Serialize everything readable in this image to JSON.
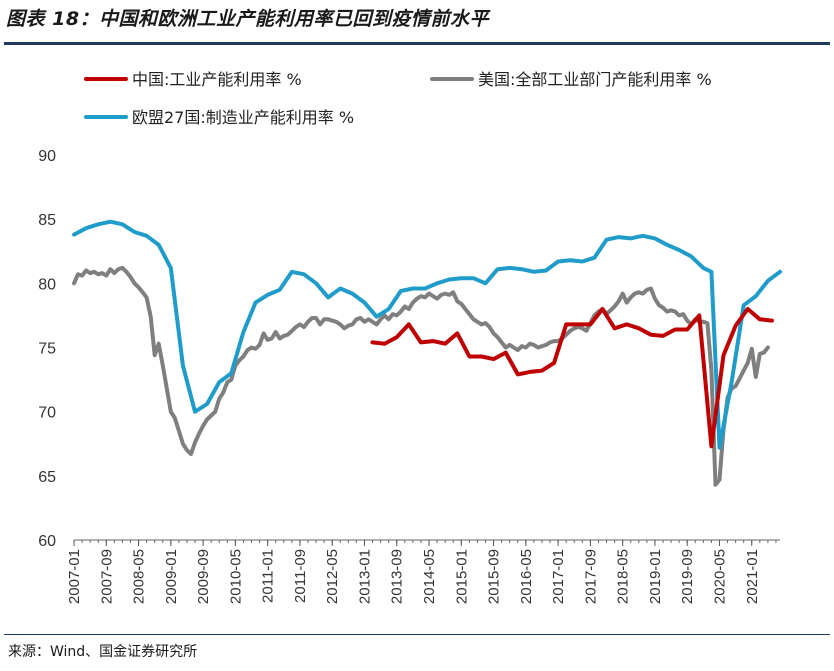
{
  "title": "图表 18：中国和欧洲工业产能利用率已回到疫情前水平",
  "source": "来源：Wind、国金证券研究所",
  "chart_data": {
    "type": "line",
    "ylim": [
      60,
      90
    ],
    "yticks": [
      60,
      65,
      70,
      75,
      80,
      85,
      90
    ],
    "x_start": "2007-01",
    "x_end": "2021-08",
    "xticks": [
      "2007-01",
      "2007-09",
      "2008-05",
      "2009-01",
      "2009-09",
      "2010-05",
      "2011-01",
      "2011-09",
      "2012-05",
      "2013-01",
      "2013-09",
      "2014-05",
      "2015-01",
      "2015-09",
      "2016-05",
      "2017-01",
      "2017-09",
      "2018-05",
      "2019-01",
      "2019-09",
      "2020-05",
      "2021-01"
    ],
    "grid": false,
    "legend_position": "top-left",
    "series": [
      {
        "name": "中国:工业产能利用率 %",
        "color": "#c00000",
        "points": [
          [
            "2013-03",
            75.4
          ],
          [
            "2013-06",
            75.3
          ],
          [
            "2013-09",
            75.8
          ],
          [
            "2013-12",
            76.8
          ],
          [
            "2014-03",
            75.4
          ],
          [
            "2014-06",
            75.5
          ],
          [
            "2014-09",
            75.3
          ],
          [
            "2014-12",
            76.1
          ],
          [
            "2015-03",
            74.3
          ],
          [
            "2015-06",
            74.3
          ],
          [
            "2015-09",
            74.1
          ],
          [
            "2015-12",
            74.6
          ],
          [
            "2016-03",
            72.9
          ],
          [
            "2016-06",
            73.1
          ],
          [
            "2016-09",
            73.2
          ],
          [
            "2016-12",
            73.8
          ],
          [
            "2017-03",
            76.8
          ],
          [
            "2017-06",
            76.8
          ],
          [
            "2017-09",
            76.8
          ],
          [
            "2017-12",
            78.0
          ],
          [
            "2018-03",
            76.5
          ],
          [
            "2018-06",
            76.8
          ],
          [
            "2018-09",
            76.5
          ],
          [
            "2018-12",
            76.0
          ],
          [
            "2019-03",
            75.9
          ],
          [
            "2019-06",
            76.4
          ],
          [
            "2019-09",
            76.4
          ],
          [
            "2019-12",
            77.5
          ],
          [
            "2020-03",
            67.3
          ],
          [
            "2020-06",
            74.4
          ],
          [
            "2020-09",
            76.7
          ],
          [
            "2020-12",
            78.0
          ],
          [
            "2021-03",
            77.2
          ],
          [
            "2021-06",
            77.1
          ]
        ]
      },
      {
        "name": "美国:全部工业部门产能利用率 %",
        "color": "#7f7f7f",
        "points": [
          [
            "2007-01",
            80.0
          ],
          [
            "2007-02",
            80.7
          ],
          [
            "2007-03",
            80.6
          ],
          [
            "2007-04",
            81.0
          ],
          [
            "2007-05",
            80.8
          ],
          [
            "2007-06",
            80.9
          ],
          [
            "2007-07",
            80.7
          ],
          [
            "2007-08",
            80.8
          ],
          [
            "2007-09",
            80.6
          ],
          [
            "2007-10",
            81.1
          ],
          [
            "2007-11",
            80.8
          ],
          [
            "2007-12",
            81.1
          ],
          [
            "2008-01",
            81.2
          ],
          [
            "2008-02",
            80.9
          ],
          [
            "2008-03",
            80.5
          ],
          [
            "2008-04",
            80.0
          ],
          [
            "2008-05",
            79.7
          ],
          [
            "2008-06",
            79.3
          ],
          [
            "2008-07",
            78.9
          ],
          [
            "2008-08",
            77.4
          ],
          [
            "2008-09",
            74.4
          ],
          [
            "2008-10",
            75.3
          ],
          [
            "2008-11",
            73.6
          ],
          [
            "2008-12",
            71.8
          ],
          [
            "2009-01",
            70.0
          ],
          [
            "2009-02",
            69.5
          ],
          [
            "2009-03",
            68.5
          ],
          [
            "2009-04",
            67.5
          ],
          [
            "2009-05",
            67.0
          ],
          [
            "2009-06",
            66.7
          ],
          [
            "2009-07",
            67.6
          ],
          [
            "2009-08",
            68.3
          ],
          [
            "2009-09",
            68.9
          ],
          [
            "2009-10",
            69.4
          ],
          [
            "2009-11",
            69.7
          ],
          [
            "2009-12",
            70.0
          ],
          [
            "2010-01",
            71.0
          ],
          [
            "2010-02",
            71.5
          ],
          [
            "2010-03",
            72.3
          ],
          [
            "2010-04",
            72.5
          ],
          [
            "2010-05",
            73.6
          ],
          [
            "2010-06",
            74.0
          ],
          [
            "2010-07",
            74.3
          ],
          [
            "2010-08",
            74.8
          ],
          [
            "2010-09",
            75.0
          ],
          [
            "2010-10",
            74.9
          ],
          [
            "2010-11",
            75.2
          ],
          [
            "2010-12",
            76.1
          ],
          [
            "2011-01",
            75.6
          ],
          [
            "2011-02",
            75.7
          ],
          [
            "2011-03",
            76.2
          ],
          [
            "2011-04",
            75.7
          ],
          [
            "2011-05",
            75.9
          ],
          [
            "2011-06",
            76.0
          ],
          [
            "2011-07",
            76.3
          ],
          [
            "2011-08",
            76.6
          ],
          [
            "2011-09",
            76.8
          ],
          [
            "2011-10",
            76.6
          ],
          [
            "2011-11",
            77.0
          ],
          [
            "2011-12",
            77.3
          ],
          [
            "2012-01",
            77.3
          ],
          [
            "2012-02",
            76.8
          ],
          [
            "2012-03",
            77.2
          ],
          [
            "2012-04",
            77.2
          ],
          [
            "2012-05",
            77.1
          ],
          [
            "2012-06",
            77.0
          ],
          [
            "2012-07",
            76.8
          ],
          [
            "2012-08",
            76.5
          ],
          [
            "2012-09",
            76.7
          ],
          [
            "2012-10",
            76.8
          ],
          [
            "2012-11",
            77.2
          ],
          [
            "2012-12",
            77.3
          ],
          [
            "2013-01",
            77.0
          ],
          [
            "2013-02",
            77.2
          ],
          [
            "2013-03",
            77.0
          ],
          [
            "2013-04",
            76.8
          ],
          [
            "2013-05",
            77.2
          ],
          [
            "2013-06",
            77.5
          ],
          [
            "2013-07",
            77.2
          ],
          [
            "2013-08",
            77.6
          ],
          [
            "2013-09",
            77.5
          ],
          [
            "2013-10",
            77.8
          ],
          [
            "2013-11",
            78.2
          ],
          [
            "2013-12",
            78.0
          ],
          [
            "2014-01",
            78.5
          ],
          [
            "2014-02",
            78.8
          ],
          [
            "2014-03",
            79.0
          ],
          [
            "2014-04",
            78.9
          ],
          [
            "2014-05",
            79.2
          ],
          [
            "2014-06",
            79.0
          ],
          [
            "2014-07",
            78.8
          ],
          [
            "2014-08",
            79.1
          ],
          [
            "2014-09",
            79.2
          ],
          [
            "2014-10",
            79.1
          ],
          [
            "2014-11",
            79.3
          ],
          [
            "2014-12",
            78.6
          ],
          [
            "2015-01",
            78.4
          ],
          [
            "2015-02",
            78.0
          ],
          [
            "2015-03",
            77.6
          ],
          [
            "2015-04",
            77.2
          ],
          [
            "2015-05",
            77.0
          ],
          [
            "2015-06",
            76.8
          ],
          [
            "2015-07",
            76.9
          ],
          [
            "2015-08",
            76.6
          ],
          [
            "2015-09",
            76.1
          ],
          [
            "2015-10",
            75.8
          ],
          [
            "2015-11",
            75.4
          ],
          [
            "2015-12",
            75.0
          ],
          [
            "2016-01",
            75.2
          ],
          [
            "2016-02",
            75.0
          ],
          [
            "2016-03",
            74.8
          ],
          [
            "2016-04",
            75.1
          ],
          [
            "2016-05",
            75.0
          ],
          [
            "2016-06",
            75.3
          ],
          [
            "2016-07",
            75.2
          ],
          [
            "2016-08",
            75.0
          ],
          [
            "2016-09",
            75.1
          ],
          [
            "2016-10",
            75.2
          ],
          [
            "2016-11",
            75.4
          ],
          [
            "2016-12",
            75.5
          ],
          [
            "2017-01",
            75.5
          ],
          [
            "2017-02",
            75.7
          ],
          [
            "2017-03",
            76.0
          ],
          [
            "2017-04",
            76.3
          ],
          [
            "2017-05",
            76.5
          ],
          [
            "2017-06",
            76.6
          ],
          [
            "2017-07",
            76.5
          ],
          [
            "2017-08",
            76.3
          ],
          [
            "2017-09",
            76.9
          ],
          [
            "2017-10",
            77.5
          ],
          [
            "2017-11",
            77.8
          ],
          [
            "2017-12",
            78.0
          ],
          [
            "2018-01",
            77.6
          ],
          [
            "2018-02",
            77.9
          ],
          [
            "2018-03",
            78.2
          ],
          [
            "2018-04",
            78.6
          ],
          [
            "2018-05",
            79.2
          ],
          [
            "2018-06",
            78.5
          ],
          [
            "2018-07",
            78.9
          ],
          [
            "2018-08",
            79.2
          ],
          [
            "2018-09",
            79.3
          ],
          [
            "2018-10",
            79.2
          ],
          [
            "2018-11",
            79.5
          ],
          [
            "2018-12",
            79.6
          ],
          [
            "2019-01",
            78.8
          ],
          [
            "2019-02",
            78.3
          ],
          [
            "2019-03",
            78.1
          ],
          [
            "2019-04",
            77.8
          ],
          [
            "2019-05",
            77.9
          ],
          [
            "2019-06",
            77.8
          ],
          [
            "2019-07",
            77.5
          ],
          [
            "2019-08",
            77.6
          ],
          [
            "2019-09",
            77.1
          ],
          [
            "2019-10",
            76.8
          ],
          [
            "2019-11",
            77.2
          ],
          [
            "2019-12",
            77.0
          ],
          [
            "2020-01",
            77.0
          ],
          [
            "2020-02",
            76.9
          ],
          [
            "2020-03",
            73.2
          ],
          [
            "2020-04",
            64.3
          ],
          [
            "2020-05",
            64.7
          ],
          [
            "2020-06",
            68.6
          ],
          [
            "2020-07",
            71.1
          ],
          [
            "2020-08",
            71.8
          ],
          [
            "2020-09",
            72.0
          ],
          [
            "2020-10",
            72.6
          ],
          [
            "2020-11",
            73.2
          ],
          [
            "2020-12",
            73.8
          ],
          [
            "2021-01",
            74.9
          ],
          [
            "2021-02",
            72.7
          ],
          [
            "2021-03",
            74.5
          ],
          [
            "2021-04",
            74.6
          ],
          [
            "2021-05",
            75.0
          ]
        ]
      },
      {
        "name": "欧盟27国:制造业产能利用率 %",
        "color": "#1f9cc9",
        "points": [
          [
            "2007-01",
            83.8
          ],
          [
            "2007-04",
            84.3
          ],
          [
            "2007-07",
            84.6
          ],
          [
            "2007-10",
            84.8
          ],
          [
            "2008-01",
            84.6
          ],
          [
            "2008-04",
            84.0
          ],
          [
            "2008-07",
            83.7
          ],
          [
            "2008-10",
            83.0
          ],
          [
            "2009-01",
            81.2
          ],
          [
            "2009-04",
            73.6
          ],
          [
            "2009-07",
            70.0
          ],
          [
            "2009-10",
            70.6
          ],
          [
            "2010-01",
            72.3
          ],
          [
            "2010-04",
            73.0
          ],
          [
            "2010-07",
            76.2
          ],
          [
            "2010-10",
            78.5
          ],
          [
            "2011-01",
            79.1
          ],
          [
            "2011-04",
            79.5
          ],
          [
            "2011-07",
            80.9
          ],
          [
            "2011-10",
            80.7
          ],
          [
            "2012-01",
            80.0
          ],
          [
            "2012-04",
            78.9
          ],
          [
            "2012-07",
            79.6
          ],
          [
            "2012-10",
            79.2
          ],
          [
            "2013-01",
            78.5
          ],
          [
            "2013-04",
            77.4
          ],
          [
            "2013-07",
            78.0
          ],
          [
            "2013-10",
            79.4
          ],
          [
            "2014-01",
            79.6
          ],
          [
            "2014-04",
            79.6
          ],
          [
            "2014-07",
            80.0
          ],
          [
            "2014-10",
            80.3
          ],
          [
            "2015-01",
            80.4
          ],
          [
            "2015-04",
            80.4
          ],
          [
            "2015-07",
            80.0
          ],
          [
            "2015-10",
            81.1
          ],
          [
            "2016-01",
            81.2
          ],
          [
            "2016-04",
            81.1
          ],
          [
            "2016-07",
            80.9
          ],
          [
            "2016-10",
            81.0
          ],
          [
            "2017-01",
            81.7
          ],
          [
            "2017-04",
            81.8
          ],
          [
            "2017-07",
            81.7
          ],
          [
            "2017-10",
            82.0
          ],
          [
            "2018-01",
            83.4
          ],
          [
            "2018-04",
            83.6
          ],
          [
            "2018-07",
            83.5
          ],
          [
            "2018-10",
            83.7
          ],
          [
            "2019-01",
            83.5
          ],
          [
            "2019-04",
            83.0
          ],
          [
            "2019-07",
            82.6
          ],
          [
            "2019-10",
            82.1
          ],
          [
            "2020-01",
            81.2
          ],
          [
            "2020-03",
            80.9
          ],
          [
            "2020-05",
            67.2
          ],
          [
            "2020-08",
            72.3
          ],
          [
            "2020-11",
            78.3
          ],
          [
            "2021-02",
            79.0
          ],
          [
            "2021-05",
            80.2
          ],
          [
            "2021-08",
            80.9
          ]
        ]
      }
    ]
  }
}
